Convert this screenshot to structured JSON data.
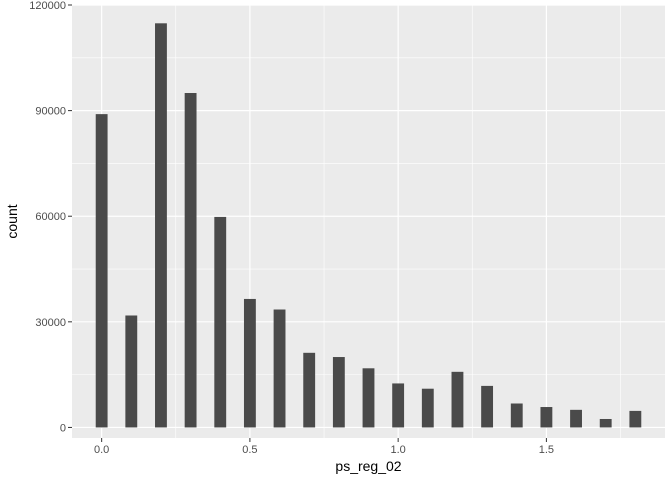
{
  "chart_data": {
    "type": "bar",
    "title": "",
    "xlabel": "ps_reg_02",
    "ylabel": "count",
    "xlim": [
      -0.1,
      1.9
    ],
    "ylim": [
      -3000,
      120000
    ],
    "x_ticks": [
      0.0,
      0.5,
      1.0,
      1.5
    ],
    "x_tick_labels": [
      "0.0",
      "0.5",
      "1.0",
      "1.5"
    ],
    "y_ticks": [
      0,
      30000,
      60000,
      90000,
      120000
    ],
    "y_tick_labels": [
      "0",
      "30000",
      "60000",
      "90000",
      "120000"
    ],
    "grid": true,
    "bar_width": 0.04,
    "x": [
      0.0,
      0.1,
      0.2,
      0.3,
      0.4,
      0.5,
      0.6,
      0.7,
      0.8,
      0.9,
      1.0,
      1.1,
      1.2,
      1.3,
      1.4,
      1.5,
      1.6,
      1.7,
      1.8
    ],
    "values": [
      89000,
      31800,
      114800,
      95000,
      59800,
      36500,
      33500,
      21200,
      20000,
      16800,
      12500,
      11000,
      15800,
      11800,
      6800,
      5800,
      5000,
      2400,
      4700
    ],
    "colors": {
      "panel": "#ebebeb",
      "grid_major": "#ffffff",
      "bar": "#4a4a4a",
      "tick": "#333333",
      "tick_text": "#4d4d4d"
    }
  }
}
